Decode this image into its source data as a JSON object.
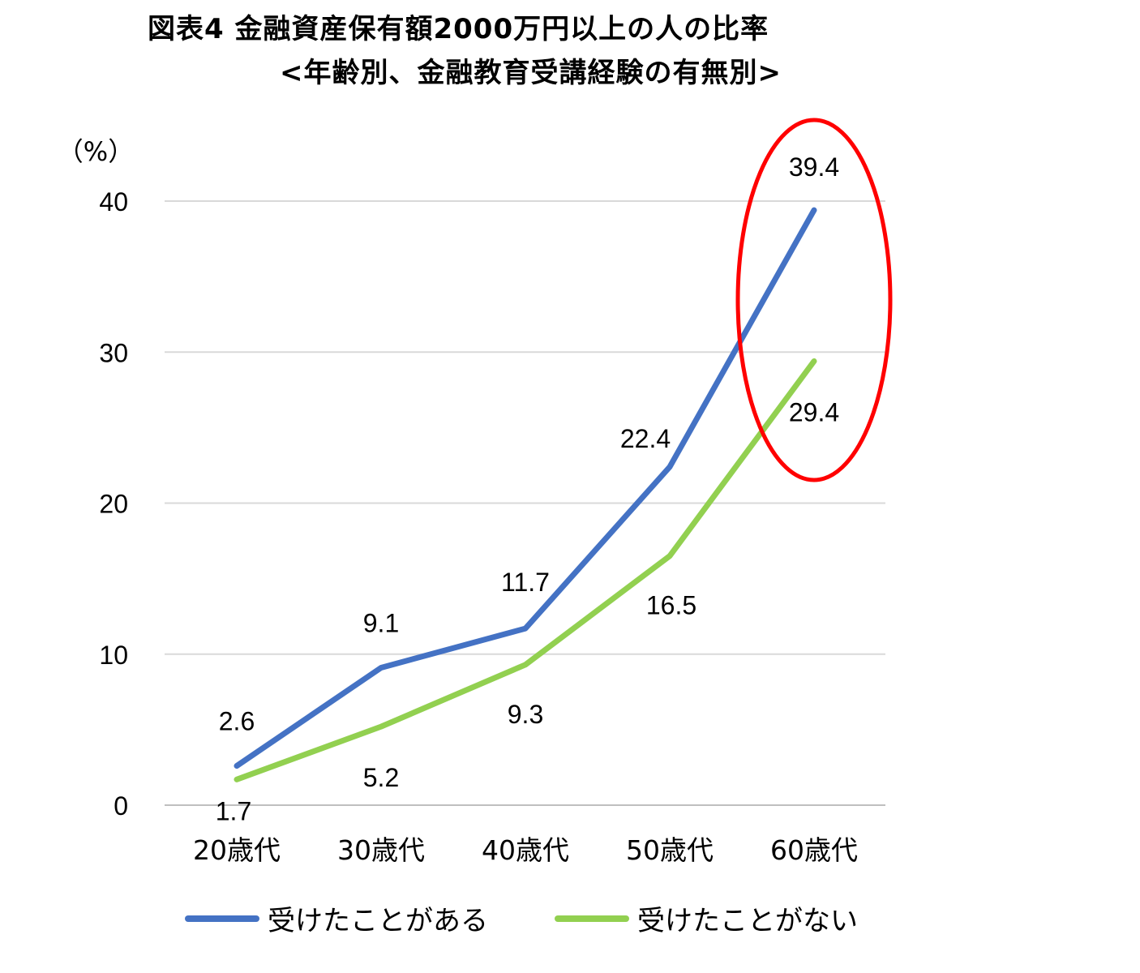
{
  "title": {
    "line1": "図表4  金融資産保有額2000万円以上の人の比率",
    "line2": "<年齢別、金融教育受講経験の有無別>"
  },
  "chart_data": {
    "type": "line",
    "unit_label": "（%）",
    "categories": [
      "20歳代",
      "30歳代",
      "40歳代",
      "50歳代",
      "60歳代"
    ],
    "ylim": [
      0,
      40
    ],
    "yticks": [
      0,
      10,
      20,
      30,
      40
    ],
    "grid": true,
    "legend_position": "bottom",
    "series": [
      {
        "name": "受けたことがある",
        "color": "#4472C4",
        "values": [
          2.6,
          9.1,
          11.7,
          22.4,
          39.4
        ]
      },
      {
        "name": "受けたことがない",
        "color": "#92D050",
        "values": [
          1.7,
          5.2,
          9.3,
          16.5,
          29.4
        ]
      }
    ],
    "highlight": {
      "category": "60歳代",
      "color": "#FF0000"
    }
  }
}
